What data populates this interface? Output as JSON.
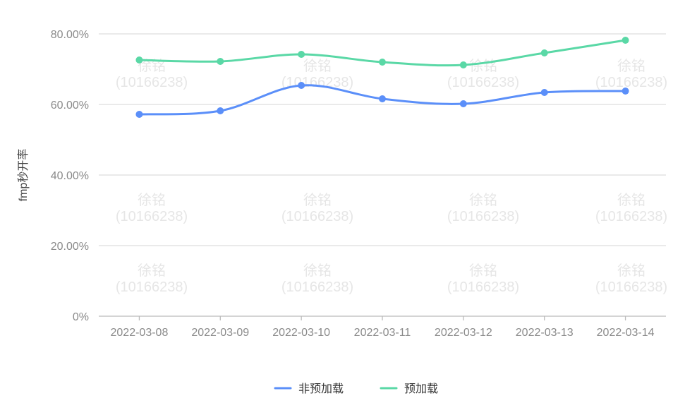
{
  "chart_data": {
    "type": "line",
    "title": "",
    "xlabel": "",
    "ylabel": "fmp秒开率",
    "ylim": [
      0,
      80
    ],
    "yticks": [
      "0%",
      "20.00%",
      "40.00%",
      "60.00%",
      "80.00%"
    ],
    "categories": [
      "2022-03-08",
      "2022-03-09",
      "2022-03-10",
      "2022-03-11",
      "2022-03-12",
      "2022-03-13",
      "2022-03-14"
    ],
    "smooth": true,
    "grid": true,
    "legend_position": "bottom",
    "series": [
      {
        "name": "非预加载",
        "color": "#5b8ff9",
        "values": [
          57.2,
          58.2,
          65.4,
          61.6,
          60.2,
          63.4,
          63.8
        ]
      },
      {
        "name": "预加载",
        "color": "#5ad8a6",
        "values": [
          72.6,
          72.2,
          74.2,
          72.0,
          71.2,
          74.6,
          78.2
        ]
      }
    ]
  },
  "watermark": {
    "name": "徐铭",
    "id": "(10166238)"
  }
}
